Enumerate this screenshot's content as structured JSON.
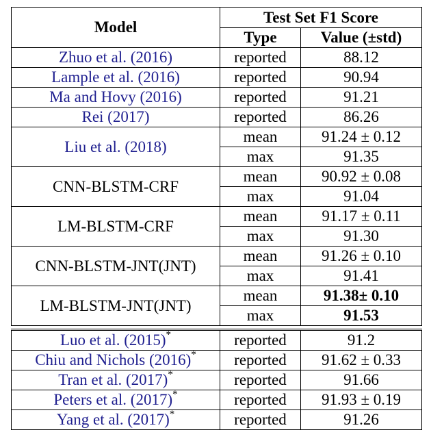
{
  "header": {
    "model": "Model",
    "test_set": "Test Set F1 Score",
    "type": "Type",
    "value": "Value (±std)"
  },
  "group1": [
    {
      "model": "Zhuo et al. (2016)",
      "cite": true,
      "rows": [
        {
          "type": "reported",
          "value": "88.12"
        }
      ]
    },
    {
      "model": "Lample et al. (2016)",
      "cite": true,
      "rows": [
        {
          "type": "reported",
          "value": "90.94"
        }
      ]
    },
    {
      "model": "Ma and Hovy (2016)",
      "cite": true,
      "rows": [
        {
          "type": "reported",
          "value": "91.21"
        }
      ]
    },
    {
      "model": "Rei (2017)",
      "cite": true,
      "rows": [
        {
          "type": "reported",
          "value": "86.26"
        }
      ]
    },
    {
      "model": "Liu et al. (2018)",
      "cite": true,
      "rows": [
        {
          "type": "mean",
          "value": "91.24 ± 0.12"
        },
        {
          "type": "max",
          "value": "91.35"
        }
      ]
    },
    {
      "model": "CNN-BLSTM-CRF",
      "cite": false,
      "rows": [
        {
          "type": "mean",
          "value": "90.92 ± 0.08"
        },
        {
          "type": "max",
          "value": "91.04"
        }
      ]
    },
    {
      "model": "LM-BLSTM-CRF",
      "cite": false,
      "rows": [
        {
          "type": "mean",
          "value": "91.17 ± 0.11"
        },
        {
          "type": "max",
          "value": "91.30"
        }
      ]
    },
    {
      "model": "CNN-BLSTM-JNT(JNT)",
      "cite": false,
      "rows": [
        {
          "type": "mean",
          "value": "91.26 ± 0.10"
        },
        {
          "type": "max",
          "value": "91.41"
        }
      ]
    },
    {
      "model": "LM-BLSTM-JNT(JNT)",
      "cite": false,
      "rows": [
        {
          "type": "mean",
          "value": "91.38± 0.10",
          "bold": true
        },
        {
          "type": "max",
          "value": "91.53",
          "bold": true
        }
      ]
    }
  ],
  "group2": [
    {
      "model": "Luo et al. (2015)",
      "star": "*",
      "type": "reported",
      "value": "91.2"
    },
    {
      "model": "Chiu and Nichols (2016)",
      "star": "*",
      "type": "reported",
      "value": "91.62 ± 0.33"
    },
    {
      "model": "Tran et al. (2017)",
      "star": "*",
      "type": "reported",
      "value": "91.66"
    },
    {
      "model": "Peters et al. (2017)",
      "star": "*",
      "type": "reported",
      "value": "91.93 ± 0.19"
    },
    {
      "model": "Yang et al. (2017)",
      "star": "*",
      "type": "reported",
      "value": "91.26"
    }
  ]
}
